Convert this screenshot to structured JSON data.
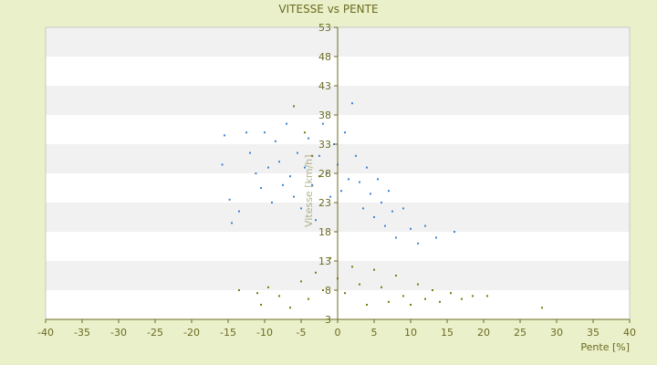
{
  "chart_data": {
    "type": "scatter",
    "title": "VITESSE vs PENTE",
    "xlabel": "Pente [%]",
    "ylabel": "Vitesse [km/h]",
    "xlim": [
      -40,
      40
    ],
    "ylim": [
      3,
      53
    ],
    "x_ticks": [
      -40,
      -35,
      -30,
      -25,
      -20,
      -15,
      -10,
      -5,
      0,
      5,
      10,
      15,
      20,
      25,
      30,
      35,
      40
    ],
    "y_ticks": [
      3,
      8,
      13,
      18,
      23,
      28,
      33,
      38,
      43,
      48,
      53
    ],
    "grid": "horizontal alternating bands",
    "series": [
      {
        "color": "#3b86d6",
        "points": [
          [
            -15.5,
            34.5
          ],
          [
            -15.8,
            29.5
          ],
          [
            -14.8,
            23.5
          ],
          [
            -14.5,
            19.5
          ],
          [
            -13.5,
            21.5
          ],
          [
            -12.5,
            35.0
          ],
          [
            -12.0,
            31.5
          ],
          [
            -11.2,
            28.0
          ],
          [
            -10.5,
            25.5
          ],
          [
            -10.0,
            35.0
          ],
          [
            -9.5,
            29.0
          ],
          [
            -9.0,
            23.0
          ],
          [
            -8.5,
            33.5
          ],
          [
            -8.0,
            30.0
          ],
          [
            -7.5,
            26.0
          ],
          [
            -7.0,
            36.5
          ],
          [
            -6.5,
            27.5
          ],
          [
            -6.0,
            24.0
          ],
          [
            -5.5,
            31.5
          ],
          [
            -5.0,
            22.0
          ],
          [
            -4.5,
            29.0
          ],
          [
            -4.0,
            34.0
          ],
          [
            -3.5,
            26.0
          ],
          [
            -3.0,
            20.0
          ],
          [
            -2.5,
            31.0
          ],
          [
            -2.0,
            36.5
          ],
          [
            -1.5,
            28.0
          ],
          [
            -1.0,
            24.0
          ],
          [
            -0.5,
            33.0
          ],
          [
            0.0,
            29.5
          ],
          [
            0.5,
            25.0
          ],
          [
            1.0,
            35.0
          ],
          [
            1.5,
            27.0
          ],
          [
            2.0,
            40.0
          ],
          [
            2.5,
            31.0
          ],
          [
            3.0,
            26.5
          ],
          [
            3.5,
            22.0
          ],
          [
            4.0,
            29.0
          ],
          [
            4.5,
            24.5
          ],
          [
            5.0,
            20.5
          ],
          [
            5.5,
            27.0
          ],
          [
            6.0,
            23.0
          ],
          [
            6.5,
            19.0
          ],
          [
            7.0,
            25.0
          ],
          [
            7.5,
            21.5
          ],
          [
            8.0,
            17.0
          ],
          [
            9.0,
            22.0
          ],
          [
            10.0,
            18.5
          ],
          [
            11.0,
            16.0
          ],
          [
            12.0,
            19.0
          ],
          [
            13.5,
            17.0
          ],
          [
            16.0,
            18.0
          ]
        ]
      },
      {
        "color": "#7a7a10",
        "points": [
          [
            -13.5,
            8.0
          ],
          [
            -11.0,
            7.5
          ],
          [
            -10.5,
            5.5
          ],
          [
            -9.5,
            8.5
          ],
          [
            -8.0,
            7.0
          ],
          [
            -6.5,
            5.0
          ],
          [
            -5.0,
            9.5
          ],
          [
            -4.0,
            6.5
          ],
          [
            -3.0,
            11.0
          ],
          [
            -2.0,
            8.0
          ],
          [
            -1.0,
            13.5
          ],
          [
            0.0,
            10.0
          ],
          [
            1.0,
            7.5
          ],
          [
            2.0,
            12.0
          ],
          [
            3.0,
            9.0
          ],
          [
            4.0,
            5.5
          ],
          [
            5.0,
            11.5
          ],
          [
            6.0,
            8.5
          ],
          [
            7.0,
            6.0
          ],
          [
            8.0,
            10.5
          ],
          [
            9.0,
            7.0
          ],
          [
            10.0,
            5.5
          ],
          [
            11.0,
            9.0
          ],
          [
            12.0,
            6.5
          ],
          [
            13.0,
            8.0
          ],
          [
            14.0,
            6.0
          ],
          [
            15.5,
            7.5
          ],
          [
            17.0,
            6.5
          ],
          [
            18.5,
            7.0
          ],
          [
            20.5,
            7.0
          ],
          [
            28.0,
            5.0
          ],
          [
            -6.0,
            39.5
          ],
          [
            -4.5,
            35.0
          ],
          [
            -3.5,
            31.0
          ],
          [
            -2.5,
            27.5
          ]
        ]
      }
    ]
  }
}
